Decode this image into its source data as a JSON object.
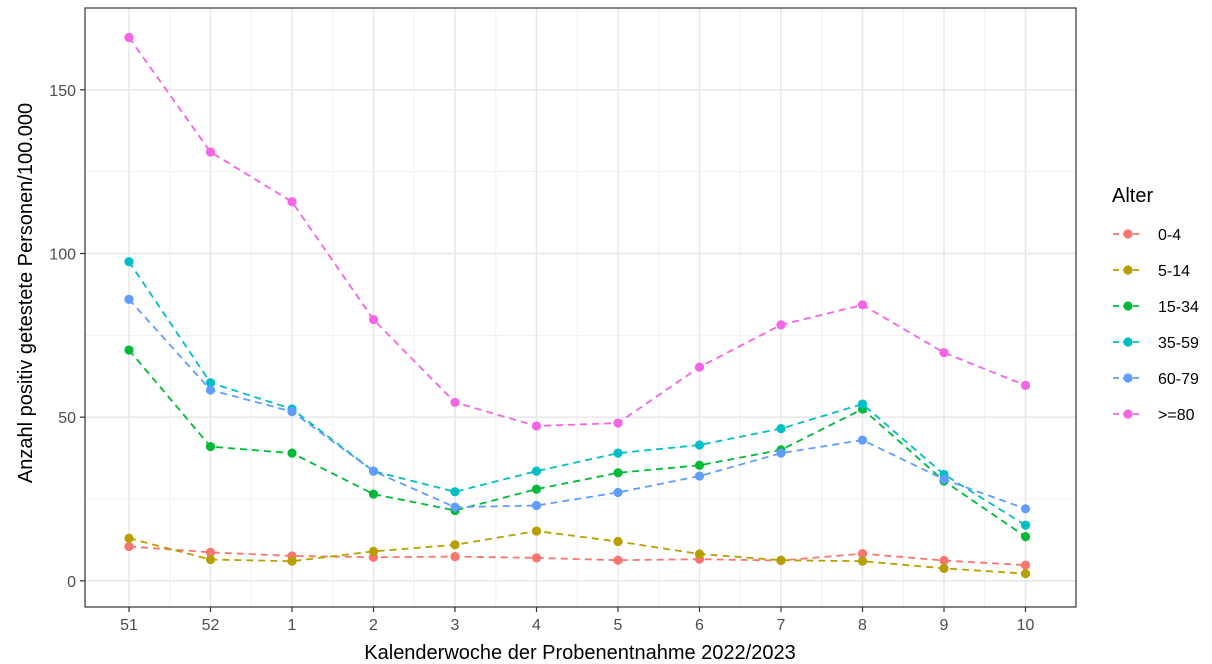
{
  "chart_data": {
    "type": "line",
    "xlabel": "Kalenderwoche der Probenentnahme 2022/2023",
    "ylabel": "Anzahl positiv getestete Personen/100.000",
    "categories": [
      "51",
      "52",
      "1",
      "2",
      "3",
      "4",
      "5",
      "6",
      "7",
      "8",
      "9",
      "10"
    ],
    "ylim": [
      -8,
      175
    ],
    "yticks": [
      0,
      50,
      100,
      150
    ],
    "grid": true,
    "legend": {
      "title": "Alter",
      "position": "right"
    },
    "series": [
      {
        "name": "0-4",
        "color": "#F8766D",
        "values": [
          10.5,
          8.7,
          7.6,
          7.2,
          7.4,
          7.0,
          6.3,
          6.6,
          6.2,
          8.3,
          6.2,
          4.8
        ]
      },
      {
        "name": "5-14",
        "color": "#B79F00",
        "values": [
          13.0,
          6.5,
          6.0,
          9.0,
          11.0,
          15.2,
          12.0,
          8.2,
          6.3,
          6.0,
          3.8,
          2.2
        ]
      },
      {
        "name": "15-34",
        "color": "#00BA38",
        "values": [
          70.5,
          41.0,
          39.0,
          26.5,
          21.5,
          28.0,
          33.0,
          35.3,
          40.0,
          52.5,
          30.5,
          13.5
        ]
      },
      {
        "name": "35-59",
        "color": "#00BFC4",
        "values": [
          97.5,
          60.5,
          52.5,
          33.5,
          27.2,
          33.5,
          39.0,
          41.5,
          46.5,
          54.0,
          32.5,
          17.0
        ]
      },
      {
        "name": "60-79",
        "color": "#619CFF",
        "values": [
          86.0,
          58.3,
          51.7,
          33.5,
          22.5,
          23.0,
          27.0,
          32.0,
          39.0,
          43.0,
          31.0,
          22.0
        ]
      },
      {
        "name": ">=80",
        "color": "#F564E3",
        "values": [
          166.0,
          131.0,
          115.8,
          79.8,
          54.5,
          47.3,
          48.2,
          65.3,
          78.2,
          84.3,
          69.7,
          59.7
        ]
      }
    ]
  }
}
